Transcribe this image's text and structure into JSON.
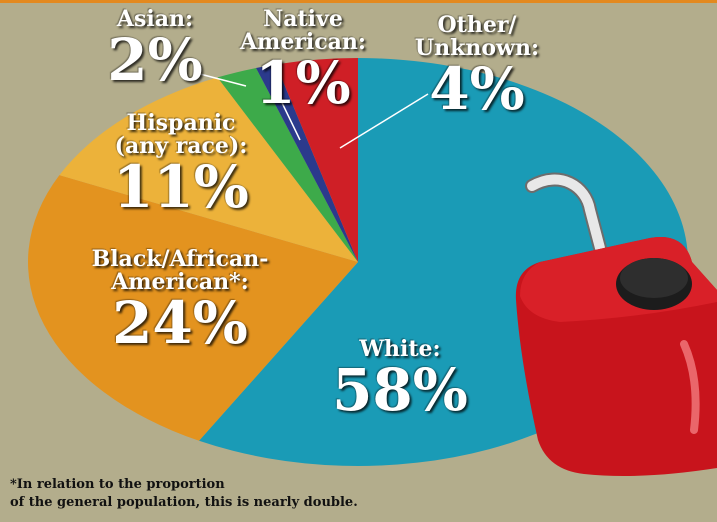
{
  "chart_data": {
    "type": "pie",
    "slices": [
      {
        "label": "White:",
        "value": 58,
        "display": "58%",
        "color": "#1a9bb6"
      },
      {
        "label": "Black/African-American*:",
        "value": 24,
        "display": "24%",
        "color": "#e3931f"
      },
      {
        "label": "Hispanic (any race):",
        "value": 11,
        "display": "11%",
        "color": "#ecb23a"
      },
      {
        "label": "Asian:",
        "value": 2,
        "display": "2%",
        "color": "#3daa4a"
      },
      {
        "label": "Native American:",
        "value": 1,
        "display": "1%",
        "color": "#2b3a8c"
      },
      {
        "label": "Other/ Unknown:",
        "value": 4,
        "display": "4%",
        "color": "#cf1f26"
      }
    ]
  },
  "labels": {
    "white": {
      "name": "White:",
      "val": "58%"
    },
    "black": {
      "name1": "Black/African-",
      "name2": "American*:",
      "val": "24%"
    },
    "hispanic": {
      "name1": "Hispanic",
      "name2": "(any race):",
      "val": "11%"
    },
    "asian": {
      "name": "Asian:",
      "val": "2%"
    },
    "native": {
      "name1": "Native",
      "name2": "American:",
      "val": "1%"
    },
    "other": {
      "name1": "Other/",
      "name2": "Unknown:",
      "val": "4%"
    }
  },
  "footnote": {
    "line1": "*In relation to the proportion",
    "line2": "of the general population, this is nearly double."
  }
}
